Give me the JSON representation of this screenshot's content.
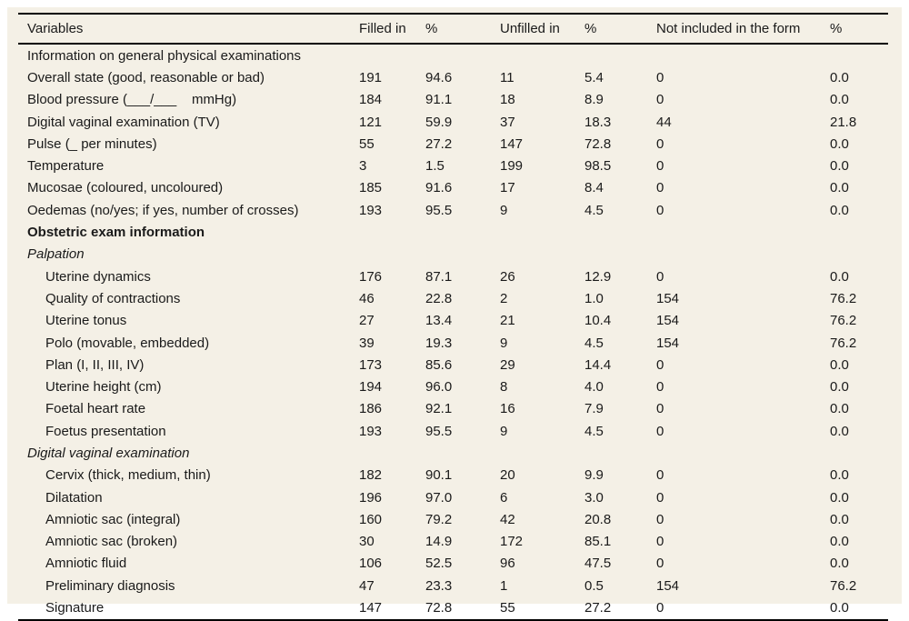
{
  "colors": {
    "background": "#f4f0e6",
    "text": "#1a1a1a",
    "rule": "#000000"
  },
  "table": {
    "columns": [
      "Variables",
      "Filled in",
      "%",
      "Unfilled in",
      "%",
      "Not included in the form",
      "%"
    ],
    "value_column_names": [
      "filled-in",
      "filled-in-pct",
      "unfilled-in",
      "unfilled-in-pct",
      "not-included",
      "not-included-pct"
    ],
    "rows": [
      {
        "label": "Information on general physical examinations",
        "style": "section-plain",
        "values": null
      },
      {
        "label": "Overall state (good, reasonable or bad)",
        "style": "item",
        "values": [
          "191",
          "94.6",
          "11",
          "5.4",
          "0",
          "0.0"
        ]
      },
      {
        "label": "Blood pressure (___/___    mmHg)",
        "style": "item",
        "values": [
          "184",
          "91.1",
          "18",
          "8.9",
          "0",
          "0.0"
        ]
      },
      {
        "label": "Digital vaginal examination (TV)",
        "style": "item",
        "values": [
          "121",
          "59.9",
          "37",
          "18.3",
          "44",
          "21.8"
        ]
      },
      {
        "label": "Pulse (_ per minutes)",
        "style": "item",
        "values": [
          "55",
          "27.2",
          "147",
          "72.8",
          "0",
          "0.0"
        ]
      },
      {
        "label": "Temperature",
        "style": "item",
        "values": [
          "3",
          "1.5",
          "199",
          "98.5",
          "0",
          "0.0"
        ]
      },
      {
        "label": "Mucosae (coloured, uncoloured)",
        "style": "item",
        "values": [
          "185",
          "91.6",
          "17",
          "8.4",
          "0",
          "0.0"
        ]
      },
      {
        "label": "Oedemas (no/yes; if yes, number of crosses)",
        "style": "item",
        "values": [
          "193",
          "95.5",
          "9",
          "4.5",
          "0",
          "0.0"
        ]
      },
      {
        "label": "Obstetric exam information",
        "style": "section-bold",
        "values": null
      },
      {
        "label": "Palpation",
        "style": "section-italic",
        "values": null
      },
      {
        "label": "Uterine dynamics",
        "style": "item-indent",
        "values": [
          "176",
          "87.1",
          "26",
          "12.9",
          "0",
          "0.0"
        ]
      },
      {
        "label": "Quality of contractions",
        "style": "item-indent",
        "values": [
          "46",
          "22.8",
          "2",
          "1.0",
          "154",
          "76.2"
        ]
      },
      {
        "label": "Uterine tonus",
        "style": "item-indent",
        "values": [
          "27",
          "13.4",
          "21",
          "10.4",
          "154",
          "76.2"
        ]
      },
      {
        "label": "Polo (movable, embedded)",
        "style": "item-indent",
        "values": [
          "39",
          "19.3",
          "9",
          "4.5",
          "154",
          "76.2"
        ]
      },
      {
        "label": "Plan (I, II, III, IV)",
        "style": "item-indent",
        "values": [
          "173",
          "85.6",
          "29",
          "14.4",
          "0",
          "0.0"
        ]
      },
      {
        "label": "Uterine height (cm)",
        "style": "item-indent",
        "values": [
          "194",
          "96.0",
          "8",
          "4.0",
          "0",
          "0.0"
        ]
      },
      {
        "label": "Foetal heart rate",
        "style": "item-indent",
        "values": [
          "186",
          "92.1",
          "16",
          "7.9",
          "0",
          "0.0"
        ]
      },
      {
        "label": "Foetus presentation",
        "style": "item-indent",
        "values": [
          "193",
          "95.5",
          "9",
          "4.5",
          "0",
          "0.0"
        ]
      },
      {
        "label": "Digital vaginal examination",
        "style": "section-italic",
        "values": null
      },
      {
        "label": "Cervix (thick, medium, thin)",
        "style": "item-indent",
        "values": [
          "182",
          "90.1",
          "20",
          "9.9",
          "0",
          "0.0"
        ]
      },
      {
        "label": "Dilatation",
        "style": "item-indent",
        "values": [
          "196",
          "97.0",
          "6",
          "3.0",
          "0",
          "0.0"
        ]
      },
      {
        "label": "Amniotic sac (integral)",
        "style": "item-indent",
        "values": [
          "160",
          "79.2",
          "42",
          "20.8",
          "0",
          "0.0"
        ]
      },
      {
        "label": "Amniotic sac (broken)",
        "style": "item-indent",
        "values": [
          "30",
          "14.9",
          "172",
          "85.1",
          "0",
          "0.0"
        ]
      },
      {
        "label": "Amniotic fluid",
        "style": "item-indent",
        "values": [
          "106",
          "52.5",
          "96",
          "47.5",
          "0",
          "0.0"
        ]
      },
      {
        "label": "Preliminary diagnosis",
        "style": "item-indent",
        "values": [
          "47",
          "23.3",
          "1",
          "0.5",
          "154",
          "76.2"
        ]
      },
      {
        "label": "Signature",
        "style": "item-indent",
        "values": [
          "147",
          "72.8",
          "55",
          "27.2",
          "0",
          "0.0"
        ]
      }
    ]
  }
}
